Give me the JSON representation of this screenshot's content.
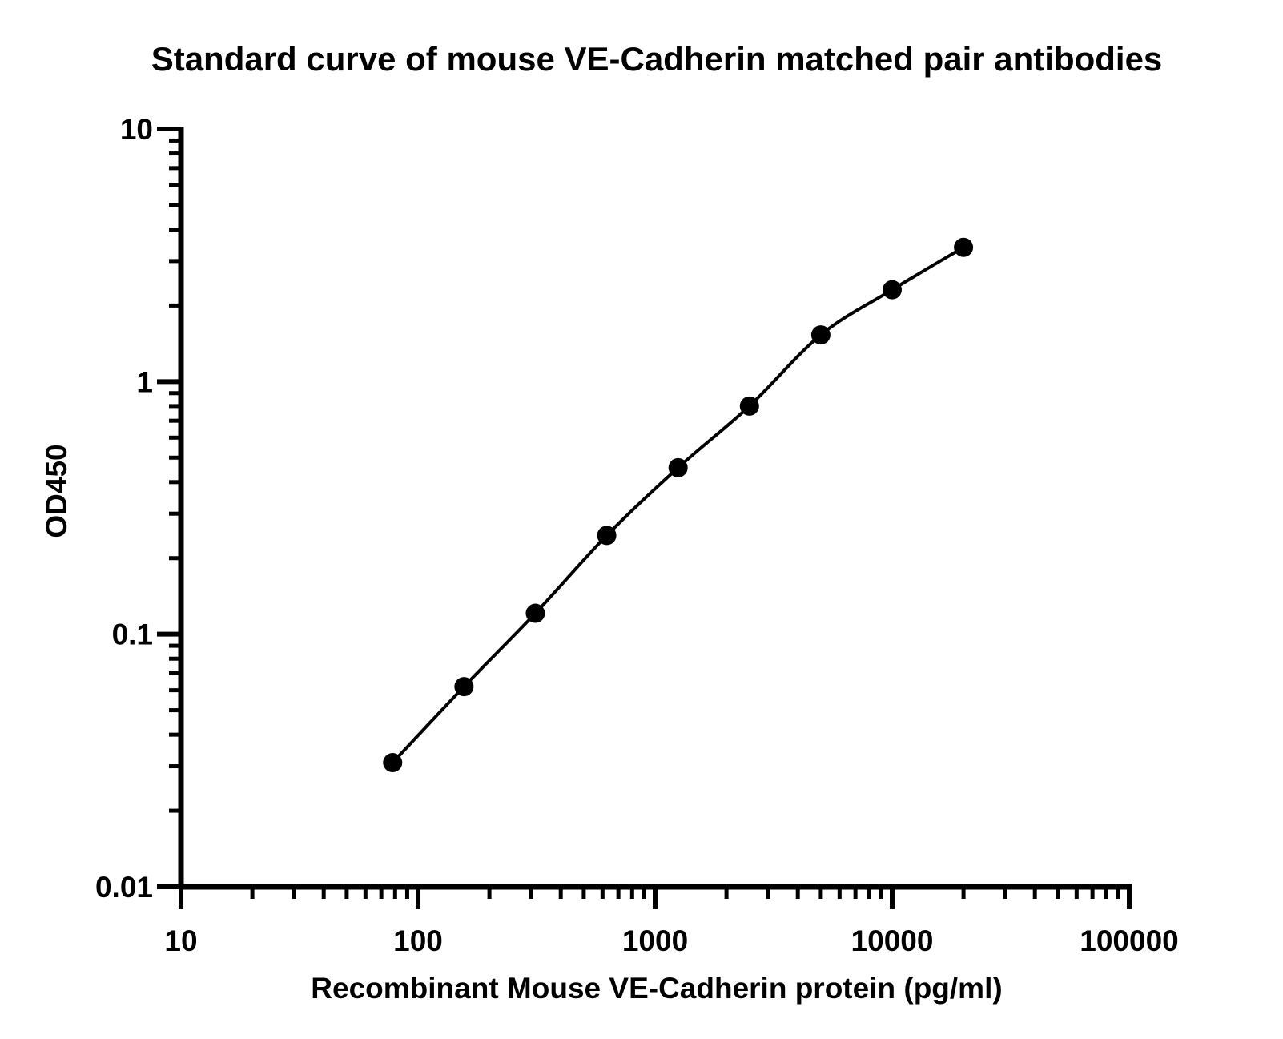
{
  "chart_data": {
    "type": "scatter",
    "title": "Standard curve of mouse VE-Cadherin matched pair antibodies",
    "xlabel": "Recombinant Mouse VE-Cadherin protein (pg/ml)",
    "ylabel": "OD450",
    "x_scale": "log",
    "y_scale": "log",
    "xlim": [
      10,
      100000
    ],
    "ylim": [
      0.01,
      10
    ],
    "x_ticks": [
      "10",
      "100",
      "1000",
      "10000",
      "100000"
    ],
    "y_ticks": [
      "0.01",
      "0.1",
      "1",
      "10"
    ],
    "grid": false,
    "legend": "none",
    "fit_curve": true,
    "series": [
      {
        "x": [
          78.125,
          156.25,
          312.5,
          625,
          1250,
          2500,
          5000,
          10000,
          20000
        ],
        "y": [
          0.031,
          0.062,
          0.121,
          0.246,
          0.456,
          0.8,
          1.53,
          2.31,
          3.4
        ]
      }
    ],
    "colors": {
      "axis": "#000000",
      "marker": "#000000",
      "line": "#000000"
    }
  }
}
